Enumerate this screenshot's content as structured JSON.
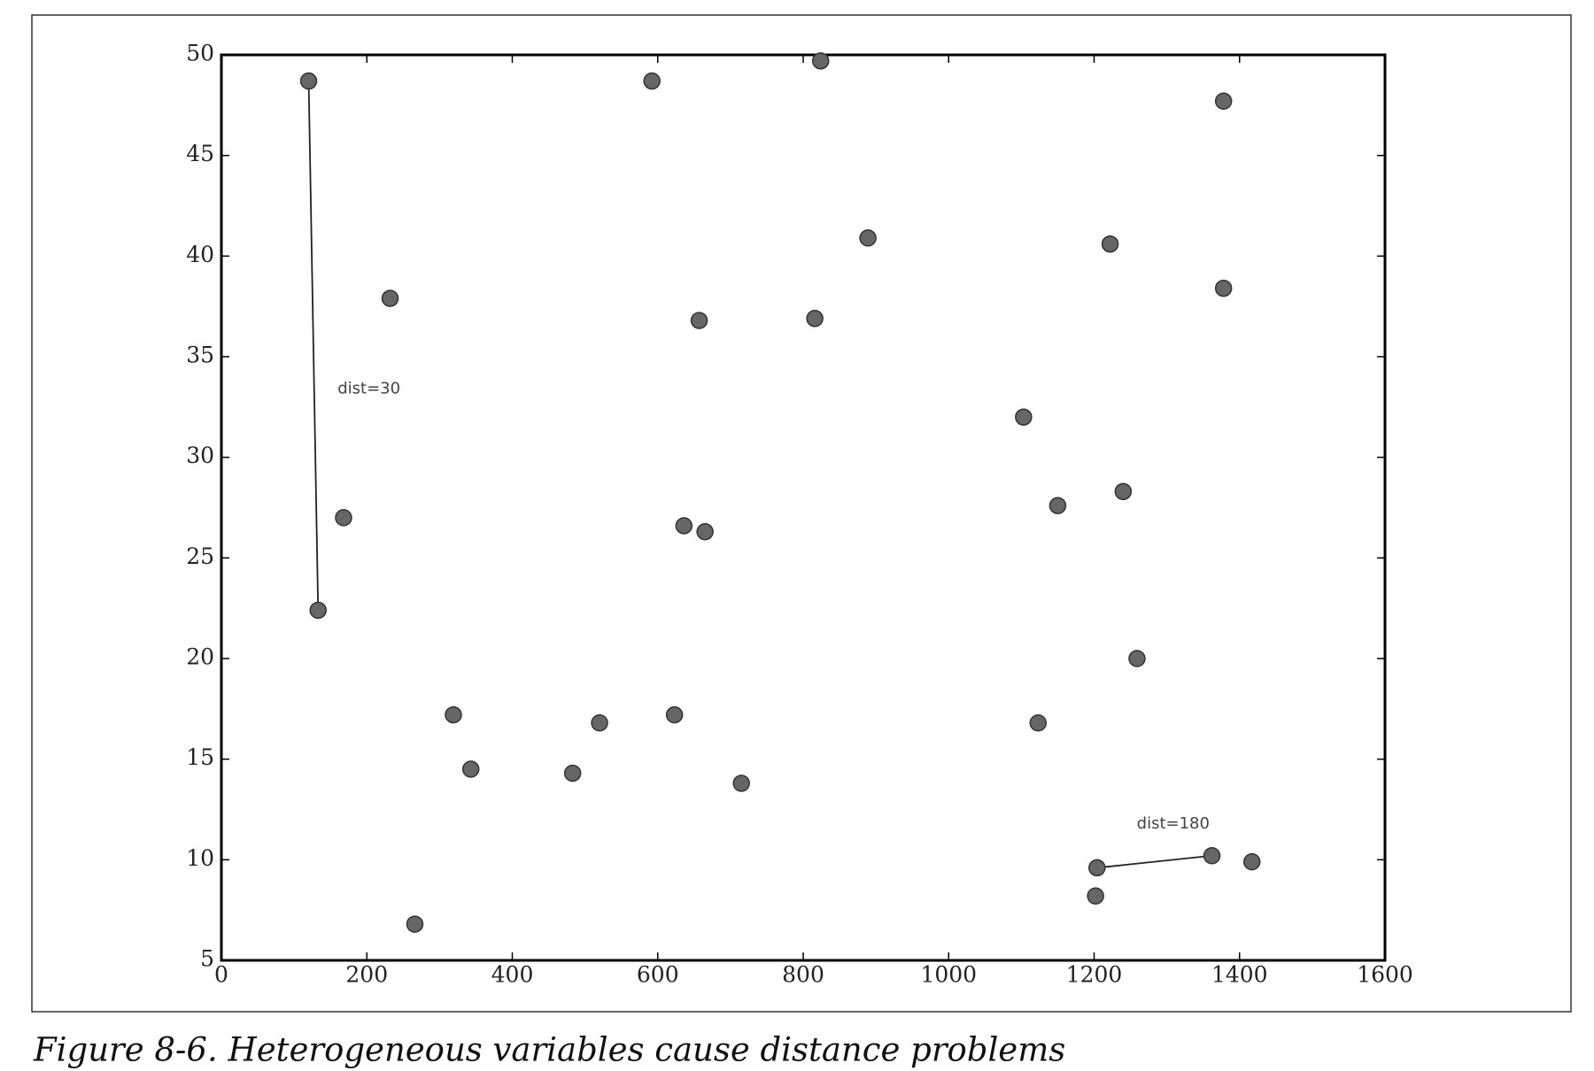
{
  "chart_data": {
    "type": "scatter",
    "caption": "Figure 8-6. Heterogeneous variables cause distance problems",
    "x": [
      120,
      133,
      232,
      168,
      266,
      319,
      343,
      483,
      520,
      592,
      657,
      636,
      665,
      623,
      715,
      824,
      816,
      889,
      1103,
      1150,
      1123,
      1222,
      1240,
      1259,
      1204,
      1202,
      1362,
      1417,
      1378,
      1378
    ],
    "values": [
      48.7,
      22.4,
      37.9,
      27.0,
      6.8,
      17.2,
      14.5,
      14.3,
      16.8,
      48.7,
      36.8,
      26.6,
      26.3,
      17.2,
      13.8,
      49.7,
      36.9,
      40.9,
      32.0,
      27.6,
      16.8,
      40.6,
      28.3,
      20.0,
      9.6,
      8.2,
      10.2,
      9.9,
      47.7,
      38.4
    ],
    "color": "#666666",
    "annotations": [
      "dist=30",
      "dist=180"
    ],
    "xlim": [
      0,
      1600
    ],
    "xticks": [
      0,
      200,
      400,
      600,
      800,
      1000,
      1200,
      1400,
      1600
    ],
    "ylim": [
      5,
      50
    ],
    "yticks": [
      5,
      10,
      15,
      20,
      25,
      30,
      35,
      40,
      45,
      50
    ],
    "grid": false
  }
}
